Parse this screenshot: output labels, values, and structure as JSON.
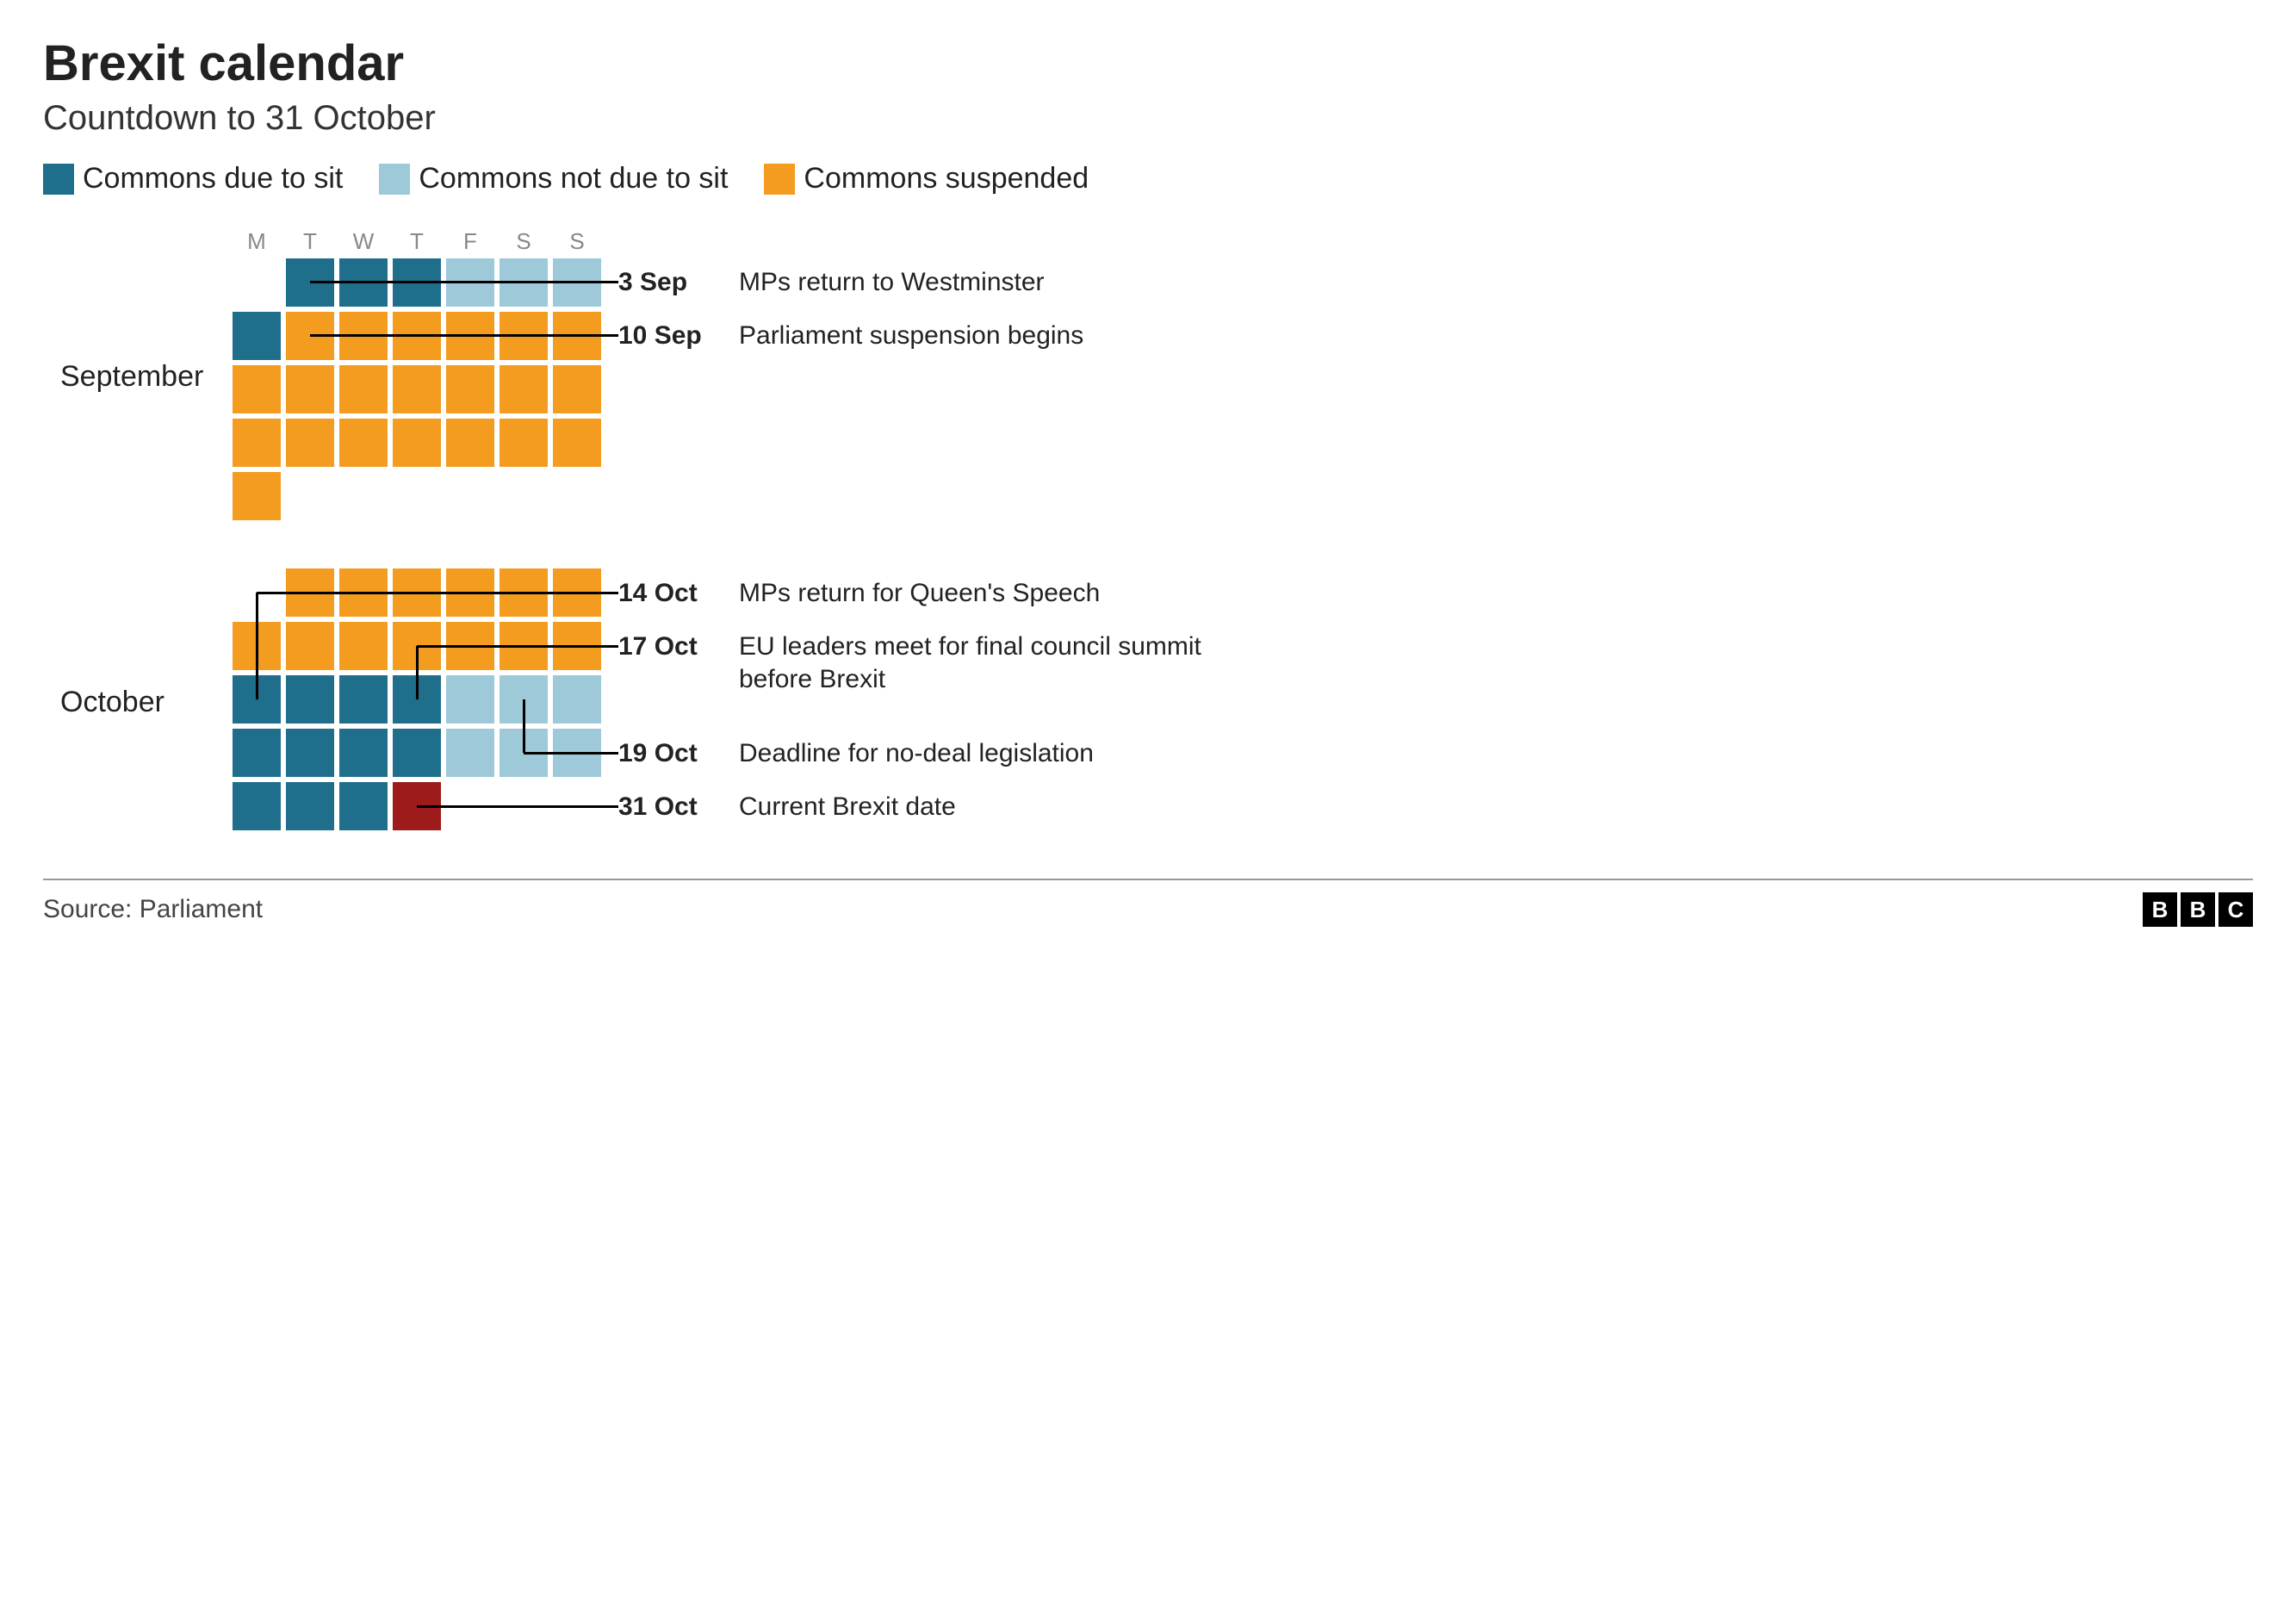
{
  "title": "Brexit calendar",
  "subtitle": "Countdown to 31 October",
  "colors": {
    "sit": "#1e6e8c",
    "not_sit": "#9ec9d9",
    "suspended": "#f39c1f",
    "brexit": "#9e1b1b",
    "text": "#222222",
    "header_text": "#888888",
    "line": "#000000"
  },
  "legend": [
    {
      "color_key": "sit",
      "label": "Commons due to sit"
    },
    {
      "color_key": "not_sit",
      "label": "Commons not due to sit"
    },
    {
      "color_key": "suspended",
      "label": "Commons suspended"
    }
  ],
  "cell": {
    "size": 56,
    "gap": 6
  },
  "day_headers": [
    "M",
    "T",
    "W",
    "T",
    "F",
    "S",
    "S"
  ],
  "months": [
    {
      "name": "September",
      "show_headers": true,
      "weeks": [
        [
          null,
          "sit",
          "sit",
          "sit",
          "not_sit",
          "not_sit",
          "not_sit"
        ],
        [
          "sit",
          "suspended",
          "suspended",
          "suspended",
          "suspended",
          "suspended",
          "suspended"
        ],
        [
          "suspended",
          "suspended",
          "suspended",
          "suspended",
          "suspended",
          "suspended",
          "suspended"
        ],
        [
          "suspended",
          "suspended",
          "suspended",
          "suspended",
          "suspended",
          "suspended",
          "suspended"
        ],
        [
          "suspended",
          null,
          null,
          null,
          null,
          null,
          null
        ]
      ],
      "annotations": [
        {
          "date": "3 Sep",
          "desc": "MPs return to Westminster",
          "from_col": 1,
          "from_row": 0,
          "text_row": 0
        },
        {
          "date": "10 Sep",
          "desc": "Parliament suspension begins",
          "from_col": 1,
          "from_row": 1,
          "text_row": 1
        }
      ]
    },
    {
      "name": "October",
      "show_headers": false,
      "weeks": [
        [
          null,
          "suspended",
          "suspended",
          "suspended",
          "suspended",
          "suspended",
          "suspended"
        ],
        [
          "suspended",
          "suspended",
          "suspended",
          "suspended",
          "suspended",
          "suspended",
          "suspended"
        ],
        [
          "sit",
          "sit",
          "sit",
          "sit",
          "not_sit",
          "not_sit",
          "not_sit"
        ],
        [
          "sit",
          "sit",
          "sit",
          "sit",
          "not_sit",
          "not_sit",
          "not_sit"
        ],
        [
          "sit",
          "sit",
          "sit",
          "brexit",
          null,
          null,
          null
        ]
      ],
      "annotations": [
        {
          "date": "14 Oct",
          "desc": "MPs return for Queen's Speech",
          "from_col": 0,
          "from_row": 2,
          "text_row": 0,
          "elbow": true
        },
        {
          "date": "17 Oct",
          "desc": "EU leaders meet for final council summit before Brexit",
          "from_col": 3,
          "from_row": 2,
          "text_row": 1,
          "elbow": true
        },
        {
          "date": "19 Oct",
          "desc": "Deadline for no-deal legislation",
          "from_col": 5,
          "from_row": 2,
          "text_row": 3,
          "elbow": true,
          "down": true
        },
        {
          "date": "31 Oct",
          "desc": "Current Brexit date",
          "from_col": 3,
          "from_row": 4,
          "text_row": 4
        }
      ]
    }
  ],
  "source": "Source: Parliament",
  "logo": [
    "B",
    "B",
    "C"
  ]
}
